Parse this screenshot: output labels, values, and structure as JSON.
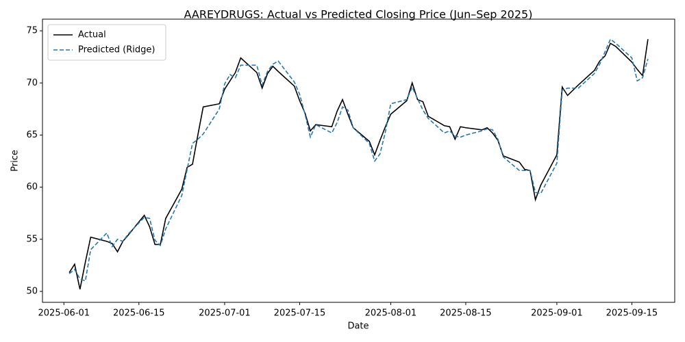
{
  "chart_data": {
    "type": "line",
    "title": "AAREYDRUGS: Actual vs Predicted Closing Price (Jun–Sep 2025)",
    "xlabel": "Date",
    "ylabel": "Price",
    "x": [
      "2025-06-02",
      "2025-06-03",
      "2025-06-04",
      "2025-06-05",
      "2025-06-06",
      "2025-06-09",
      "2025-06-10",
      "2025-06-11",
      "2025-06-12",
      "2025-06-13",
      "2025-06-16",
      "2025-06-17",
      "2025-06-18",
      "2025-06-19",
      "2025-06-20",
      "2025-06-23",
      "2025-06-24",
      "2025-06-25",
      "2025-06-26",
      "2025-06-27",
      "2025-06-30",
      "2025-07-01",
      "2025-07-02",
      "2025-07-03",
      "2025-07-04",
      "2025-07-07",
      "2025-07-08",
      "2025-07-09",
      "2025-07-10",
      "2025-07-11",
      "2025-07-14",
      "2025-07-15",
      "2025-07-16",
      "2025-07-17",
      "2025-07-18",
      "2025-07-21",
      "2025-07-22",
      "2025-07-23",
      "2025-07-24",
      "2025-07-25",
      "2025-07-28",
      "2025-07-29",
      "2025-07-30",
      "2025-07-31",
      "2025-08-01",
      "2025-08-04",
      "2025-08-05",
      "2025-08-06",
      "2025-08-07",
      "2025-08-08",
      "2025-08-11",
      "2025-08-12",
      "2025-08-13",
      "2025-08-14",
      "2025-08-15",
      "2025-08-18",
      "2025-08-19",
      "2025-08-20",
      "2025-08-21",
      "2025-08-22",
      "2025-08-25",
      "2025-08-26",
      "2025-08-27",
      "2025-08-28",
      "2025-08-29",
      "2025-09-01",
      "2025-09-02",
      "2025-09-03",
      "2025-09-04",
      "2025-09-05",
      "2025-09-08",
      "2025-09-09",
      "2025-09-10",
      "2025-09-11",
      "2025-09-12",
      "2025-09-15",
      "2025-09-16",
      "2025-09-17",
      "2025-09-18"
    ],
    "series": [
      {
        "name": "Actual",
        "color": "#000000",
        "linestyle": "solid",
        "values": [
          51.8,
          52.6,
          50.2,
          52.8,
          55.2,
          54.8,
          54.6,
          53.8,
          54.8,
          55.4,
          57.3,
          56.2,
          54.5,
          54.5,
          57.0,
          59.8,
          61.9,
          62.2,
          65.0,
          67.7,
          68.0,
          69.4,
          70.2,
          71.0,
          72.4,
          71.0,
          69.5,
          70.9,
          71.6,
          71.1,
          69.7,
          68.3,
          67.1,
          65.4,
          66.0,
          65.8,
          67.3,
          68.4,
          67.0,
          65.7,
          64.4,
          63.1,
          64.5,
          65.8,
          67.0,
          68.3,
          70.0,
          68.4,
          68.2,
          66.8,
          65.9,
          65.8,
          64.6,
          65.8,
          65.7,
          65.5,
          65.7,
          65.2,
          64.5,
          63.0,
          62.4,
          61.7,
          61.6,
          58.8,
          60.2,
          63.1,
          69.6,
          68.8,
          69.3,
          69.8,
          71.2,
          72.1,
          72.6,
          73.8,
          73.5,
          72.0,
          71.3,
          70.7,
          74.2
        ]
      },
      {
        "name": "Predicted (Ridge)",
        "color": "#1f77b4",
        "linestyle": "dashed",
        "values": [
          51.7,
          52.1,
          51.2,
          51.0,
          54.0,
          55.6,
          54.3,
          55.0,
          54.8,
          55.5,
          57.1,
          57.0,
          54.9,
          54.4,
          56.0,
          59.2,
          61.7,
          64.2,
          64.6,
          65.1,
          67.5,
          69.9,
          70.8,
          70.5,
          71.7,
          71.7,
          69.8,
          71.1,
          71.8,
          72.1,
          70.1,
          68.9,
          67.0,
          64.8,
          66.0,
          65.2,
          66.2,
          67.7,
          67.4,
          65.7,
          64.2,
          62.5,
          63.2,
          65.3,
          68.0,
          68.4,
          69.6,
          68.5,
          67.4,
          66.6,
          65.2,
          65.4,
          64.9,
          64.8,
          65.0,
          65.4,
          65.6,
          65.5,
          64.6,
          62.9,
          61.6,
          61.6,
          61.6,
          59.5,
          59.4,
          62.3,
          69.3,
          69.5,
          69.5,
          69.5,
          70.9,
          71.8,
          73.0,
          74.2,
          73.8,
          72.4,
          70.2,
          70.5,
          72.3
        ]
      }
    ],
    "xlim": [
      "2025-05-28",
      "2025-09-23"
    ],
    "xticks": [
      "2025-06-01",
      "2025-06-15",
      "2025-07-01",
      "2025-07-15",
      "2025-08-01",
      "2025-08-15",
      "2025-09-01",
      "2025-09-15"
    ],
    "ylim": [
      48.95,
      76.12
    ],
    "yticks": [
      50,
      55,
      60,
      65,
      70,
      75
    ],
    "grid": false,
    "legend": "upper left"
  }
}
